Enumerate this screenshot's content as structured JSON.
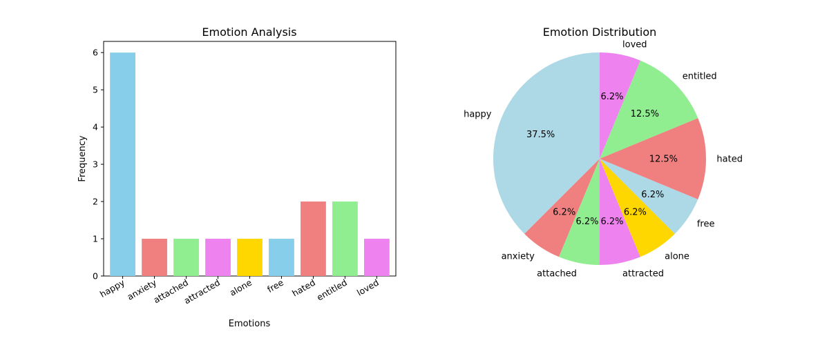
{
  "chart_data": [
    {
      "type": "bar",
      "title": "Emotion Analysis",
      "xlabel": "Emotions",
      "ylabel": "Frequency",
      "ylim": [
        0,
        6.3
      ],
      "yticks": [
        0,
        1,
        2,
        3,
        4,
        5,
        6
      ],
      "categories": [
        "happy",
        "anxiety",
        "attached",
        "attracted",
        "alone",
        "free",
        "hated",
        "entitled",
        "loved"
      ],
      "values": [
        6,
        1,
        1,
        1,
        1,
        1,
        2,
        2,
        1
      ],
      "colors": [
        "#87CEEB",
        "#F08080",
        "#90EE90",
        "#EE82EE",
        "#FFD700",
        "#87CEEB",
        "#F08080",
        "#90EE90",
        "#EE82EE"
      ],
      "grid": false
    },
    {
      "type": "pie",
      "title": "Emotion Distribution",
      "labels": [
        "happy",
        "anxiety",
        "attached",
        "attracted",
        "alone",
        "free",
        "hated",
        "entitled",
        "loved"
      ],
      "values": [
        6,
        1,
        1,
        1,
        1,
        1,
        2,
        2,
        1
      ],
      "percent_labels": [
        "37.5%",
        "6.2%",
        "6.2%",
        "6.2%",
        "6.2%",
        "6.2%",
        "12.5%",
        "12.5%",
        "6.2%"
      ],
      "colors": [
        "#ADD8E6",
        "#F08080",
        "#90EE90",
        "#EE82EE",
        "#FFD700",
        "#ADD8E6",
        "#F08080",
        "#90EE90",
        "#EE82EE"
      ],
      "start_angle_deg": 90,
      "direction": "counterclockwise"
    }
  ]
}
